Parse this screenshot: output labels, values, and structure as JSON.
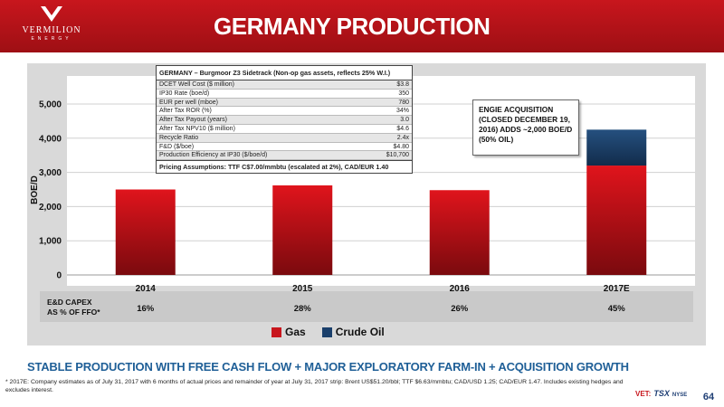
{
  "header": {
    "title": "GERMANY PRODUCTION",
    "logo_name": "VERMILION",
    "logo_sub": "ENERGY"
  },
  "info_table": {
    "title": "GERMANY – Burgmoor Z3 Sidetrack  (Non-op gas assets, reflects 25% W.I.)",
    "rows": [
      {
        "label": "DCET Well Cost ($ million)",
        "value": "$3.8"
      },
      {
        "label": "IP30 Rate (boe/d)",
        "value": "350"
      },
      {
        "label": "EUR per well (mboe)",
        "value": "780"
      },
      {
        "label": "After Tax ROR (%)",
        "value": "34%"
      },
      {
        "label": "After Tax Payout (years)",
        "value": "3.0"
      },
      {
        "label": "After Tax NPV10 ($ million)",
        "value": "$4.6"
      },
      {
        "label": "Recycle Ratio",
        "value": "2.4x"
      },
      {
        "label": "F&D ($/boe)",
        "value": "$4.80"
      },
      {
        "label": "Production Efficiency at IP30 ($/boe/d)",
        "value": "$10,700"
      }
    ],
    "footer": "Pricing Assumptions: TTF C$7.00/mmbtu (escalated at 2%), CAD/EUR 1.40"
  },
  "callout": "ENGIE ACQUISITION (CLOSED DECEMBER 19, 2016) ADDS ~2,000 BOE/D (50% OIL)",
  "chart_data": {
    "type": "bar",
    "stacked": true,
    "ylabel": "BOE/D",
    "ylim": [
      0,
      5000
    ],
    "yticks": [
      0,
      1000,
      2000,
      3000,
      4000,
      5000
    ],
    "ytick_labels": [
      "0",
      "1,000",
      "2,000",
      "3,000",
      "4,000",
      "5,000"
    ],
    "categories": [
      "2014",
      "2015",
      "2016",
      "2017E"
    ],
    "series": [
      {
        "name": "Gas",
        "values": [
          2500,
          2620,
          2480,
          3200
        ],
        "color": "#c8161d"
      },
      {
        "name": "Crude Oil",
        "values": [
          0,
          0,
          0,
          1050
        ],
        "color": "#1a3f6b"
      }
    ],
    "legend_position": "bottom"
  },
  "capex": {
    "label": "E&D CAPEX\nAS % OF FFO*",
    "values": [
      "16%",
      "28%",
      "26%",
      "45%"
    ]
  },
  "banner": "STABLE PRODUCTION WITH FREE CASH FLOW + MAJOR EXPLORATORY FARM-IN + ACQUISITION GROWTH",
  "footnote": "* 2017E: Company estimates as of July 31, 2017 with 6 months of actual prices and remainder of year at July 31, 2017 strip: Brent US$51.20/bbl; TTF $6.63/mmbtu; CAD/USD 1.25; CAD/EUR 1.47. Includes existing hedges and excludes interest.",
  "ticker": {
    "vet": "VET:",
    "tsx": "TSX",
    "nyse": "NYSE"
  },
  "page_number": "64"
}
